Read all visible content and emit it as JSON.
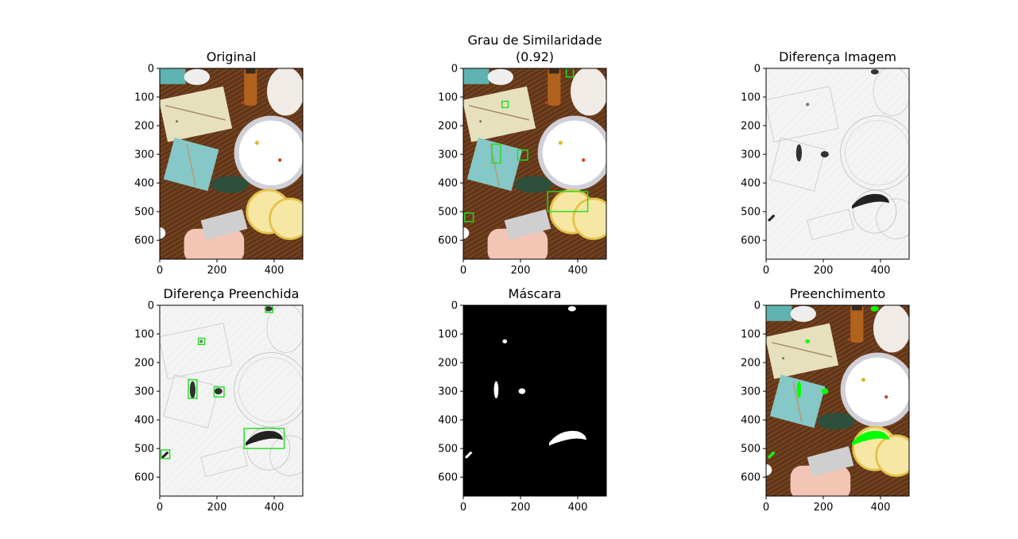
{
  "figure": {
    "titles": {
      "original": "Original",
      "similarity_line1": "Grau de Similaridade",
      "similarity_line2": "(0.92)",
      "diff": "Diferença Imagem",
      "diff_filled": "Diferença Preenchida",
      "mask": "Máscara",
      "fill": "Preenchimento"
    },
    "similarity_score": 0.92
  },
  "chart_data": [
    {
      "type": "image",
      "title": "Original",
      "x_ticks": [
        0,
        200,
        400
      ],
      "y_ticks": [
        0,
        100,
        200,
        300,
        400,
        500,
        600
      ],
      "xlim": [
        0,
        500
      ],
      "ylim": [
        666,
        0
      ]
    },
    {
      "type": "image",
      "title": "Grau de Similaridade\n(0.92)",
      "x_ticks": [
        0,
        200,
        400
      ],
      "y_ticks": [
        0,
        100,
        200,
        300,
        400,
        500,
        600
      ],
      "xlim": [
        0,
        500
      ],
      "ylim": [
        666,
        0
      ],
      "boxes": [
        [
          360,
          0,
          25,
          30
        ],
        [
          135,
          115,
          22,
          22
        ],
        [
          100,
          265,
          30,
          65
        ],
        [
          190,
          285,
          35,
          35
        ],
        [
          295,
          430,
          140,
          70
        ],
        [
          5,
          505,
          30,
          30
        ]
      ]
    },
    {
      "type": "image",
      "title": "Diferença Imagem",
      "x_ticks": [
        0,
        200,
        400
      ],
      "y_ticks": [
        0,
        100,
        200,
        300,
        400,
        500,
        600
      ],
      "xlim": [
        0,
        500
      ],
      "ylim": [
        666,
        0
      ]
    },
    {
      "type": "image",
      "title": "Diferença Preenchida",
      "x_ticks": [
        0,
        200,
        400
      ],
      "y_ticks": [
        0,
        100,
        200,
        300,
        400,
        500,
        600
      ],
      "xlim": [
        0,
        500
      ],
      "ylim": [
        666,
        0
      ],
      "boxes": [
        [
          370,
          0,
          25,
          25
        ],
        [
          135,
          115,
          22,
          22
        ],
        [
          100,
          260,
          30,
          65
        ],
        [
          190,
          285,
          35,
          35
        ],
        [
          295,
          430,
          140,
          70
        ],
        [
          5,
          505,
          30,
          30
        ]
      ]
    },
    {
      "type": "image",
      "title": "Máscara",
      "x_ticks": [
        0,
        200,
        400
      ],
      "y_ticks": [
        0,
        100,
        200,
        300,
        400,
        500,
        600
      ],
      "xlim": [
        0,
        500
      ],
      "ylim": [
        666,
        0
      ]
    },
    {
      "type": "image",
      "title": "Preenchimento",
      "x_ticks": [
        0,
        200,
        400
      ],
      "y_ticks": [
        0,
        100,
        200,
        300,
        400,
        500,
        600
      ],
      "xlim": [
        0,
        500
      ],
      "ylim": [
        666,
        0
      ]
    }
  ],
  "colors": {
    "box": "#22dd22",
    "fill_green": "#00ff00",
    "wood": "#6b3c1c",
    "mask_bg": "#000000",
    "diff_bg": "#f3f3f3"
  }
}
